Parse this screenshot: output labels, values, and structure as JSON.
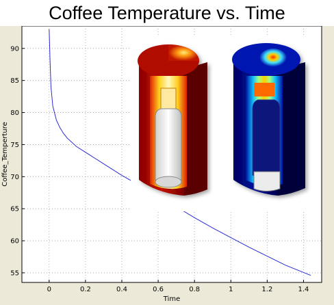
{
  "chart_data": {
    "type": "line",
    "title": "Coffee Temperature vs. Time",
    "xlabel": "Time",
    "ylabel": "Coffee_Temperture",
    "xlim": [
      -0.15,
      1.5
    ],
    "ylim": [
      53.5,
      93.5
    ],
    "xticks": [
      0,
      0.2,
      0.4,
      0.6,
      0.8,
      1,
      1.2,
      1.4
    ],
    "yticks": [
      55,
      60,
      65,
      70,
      75,
      80,
      85,
      90
    ],
    "grid": true,
    "series": [
      {
        "color": "#2a2ad6",
        "x": [
          0.0,
          0.005,
          0.01,
          0.02,
          0.04,
          0.06,
          0.08,
          0.1,
          0.15,
          0.2,
          0.25,
          0.3,
          0.4,
          0.5,
          0.6,
          0.7,
          0.8,
          0.9,
          1.0,
          1.1,
          1.2,
          1.3,
          1.44
        ],
        "y": [
          93.0,
          88.0,
          84.0,
          81.0,
          78.8,
          77.6,
          76.7,
          76.0,
          74.7,
          73.8,
          72.9,
          72.0,
          70.2,
          68.6,
          67.0,
          65.3,
          63.6,
          62.0,
          60.5,
          59.0,
          57.6,
          56.2,
          54.6
        ]
      }
    ]
  },
  "colors": {
    "plot_background": "#ffffff",
    "frame_background": "#ece9d8",
    "grid": "#9a9a9a"
  },
  "images": {
    "left_model": "thermos-heatmap-red",
    "right_model": "thermos-heatmap-blue"
  }
}
